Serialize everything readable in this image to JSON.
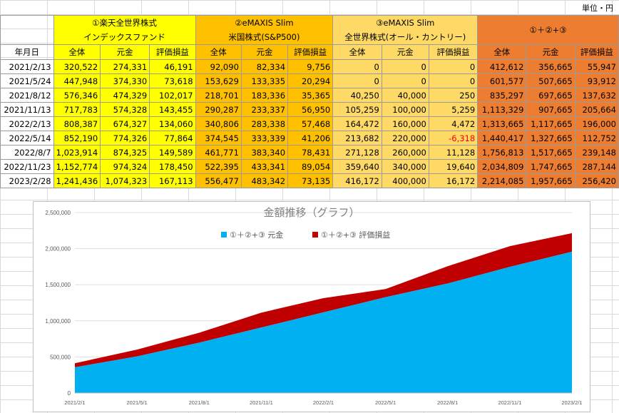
{
  "unit_label": "単位・円",
  "groups": [
    {
      "line1": "①楽天全世界株式",
      "line2": "インデックスファンド",
      "color": "#ffff00"
    },
    {
      "line1": "②eMAXIS Slim",
      "line2": "米国株式(S&P500)",
      "color": "#ffc000"
    },
    {
      "line1": "③eMAXIS Slim",
      "line2": "全世界株式(オール・カントリー)",
      "color": "#ffd966"
    },
    {
      "line1": "①＋②+③",
      "line2": "",
      "color": "#ed7d31"
    }
  ],
  "date_header": "年月日",
  "sub_headers": [
    "全体",
    "元金",
    "評価損益"
  ],
  "rows": [
    {
      "date": "2021/2/13",
      "v": [
        "320,522",
        "274,331",
        "46,191",
        "92,090",
        "82,334",
        "9,756",
        "0",
        "0",
        "0",
        "412,612",
        "356,665",
        "55,947"
      ]
    },
    {
      "date": "2021/5/24",
      "v": [
        "447,948",
        "374,330",
        "73,618",
        "153,629",
        "133,335",
        "20,294",
        "0",
        "0",
        "0",
        "601,577",
        "507,665",
        "93,912"
      ]
    },
    {
      "date": "2021/8/12",
      "v": [
        "576,346",
        "474,329",
        "102,017",
        "218,701",
        "183,336",
        "35,365",
        "40,250",
        "40,000",
        "250",
        "835,297",
        "697,665",
        "137,632"
      ]
    },
    {
      "date": "2021/11/13",
      "v": [
        "717,783",
        "574,328",
        "143,455",
        "290,287",
        "233,337",
        "56,950",
        "105,259",
        "100,000",
        "5,259",
        "1,113,329",
        "907,665",
        "205,664"
      ]
    },
    {
      "date": "2022/2/13",
      "v": [
        "808,387",
        "674,327",
        "134,060",
        "340,806",
        "283,338",
        "57,468",
        "164,472",
        "160,000",
        "4,472",
        "1,313,665",
        "1,117,665",
        "196,000"
      ]
    },
    {
      "date": "2022/5/14",
      "v": [
        "852,190",
        "774,326",
        "77,864",
        "374,545",
        "333,339",
        "41,206",
        "213,682",
        "220,000",
        "-6,318",
        "1,440,417",
        "1,327,665",
        "112,752"
      ]
    },
    {
      "date": "2022/8/7",
      "v": [
        "1,023,914",
        "874,325",
        "149,589",
        "461,771",
        "383,340",
        "78,431",
        "271,128",
        "260,000",
        "11,128",
        "1,756,813",
        "1,517,665",
        "239,148"
      ]
    },
    {
      "date": "2022/11/23",
      "v": [
        "1,152,774",
        "974,324",
        "178,450",
        "522,395",
        "433,341",
        "89,054",
        "359,640",
        "340,000",
        "19,640",
        "2,034,809",
        "1,747,665",
        "287,144"
      ]
    },
    {
      "date": "2023/2/28",
      "v": [
        "1,241,436",
        "1,074,323",
        "167,113",
        "556,477",
        "483,342",
        "73,135",
        "416,172",
        "400,000",
        "16,172",
        "2,214,085",
        "1,957,665",
        "256,420"
      ]
    }
  ],
  "chart_data": {
    "type": "area",
    "stacked": true,
    "title": "金額推移（グラフ）",
    "x": [
      "2021/2/1",
      "2021/5/1",
      "2021/8/1",
      "2021/11/1",
      "2022/2/1",
      "2022/5/1",
      "2022/8/1",
      "2022/11/1",
      "2023/2/1"
    ],
    "ylim": [
      0,
      2500000
    ],
    "yticks": [
      "0",
      "500,000",
      "1,000,000",
      "1,500,000",
      "2,000,000",
      "2,500,000"
    ],
    "legend_position": "top",
    "series": [
      {
        "name": "①＋②+③ 元金",
        "color": "#00b0f0",
        "values": [
          356665,
          507665,
          697665,
          907665,
          1117665,
          1327665,
          1517665,
          1747665,
          1957665
        ]
      },
      {
        "name": "①＋②+③ 評価損益",
        "color": "#c00000",
        "values": [
          55947,
          93912,
          137632,
          205664,
          196000,
          112752,
          239148,
          287144,
          256420
        ]
      }
    ]
  }
}
